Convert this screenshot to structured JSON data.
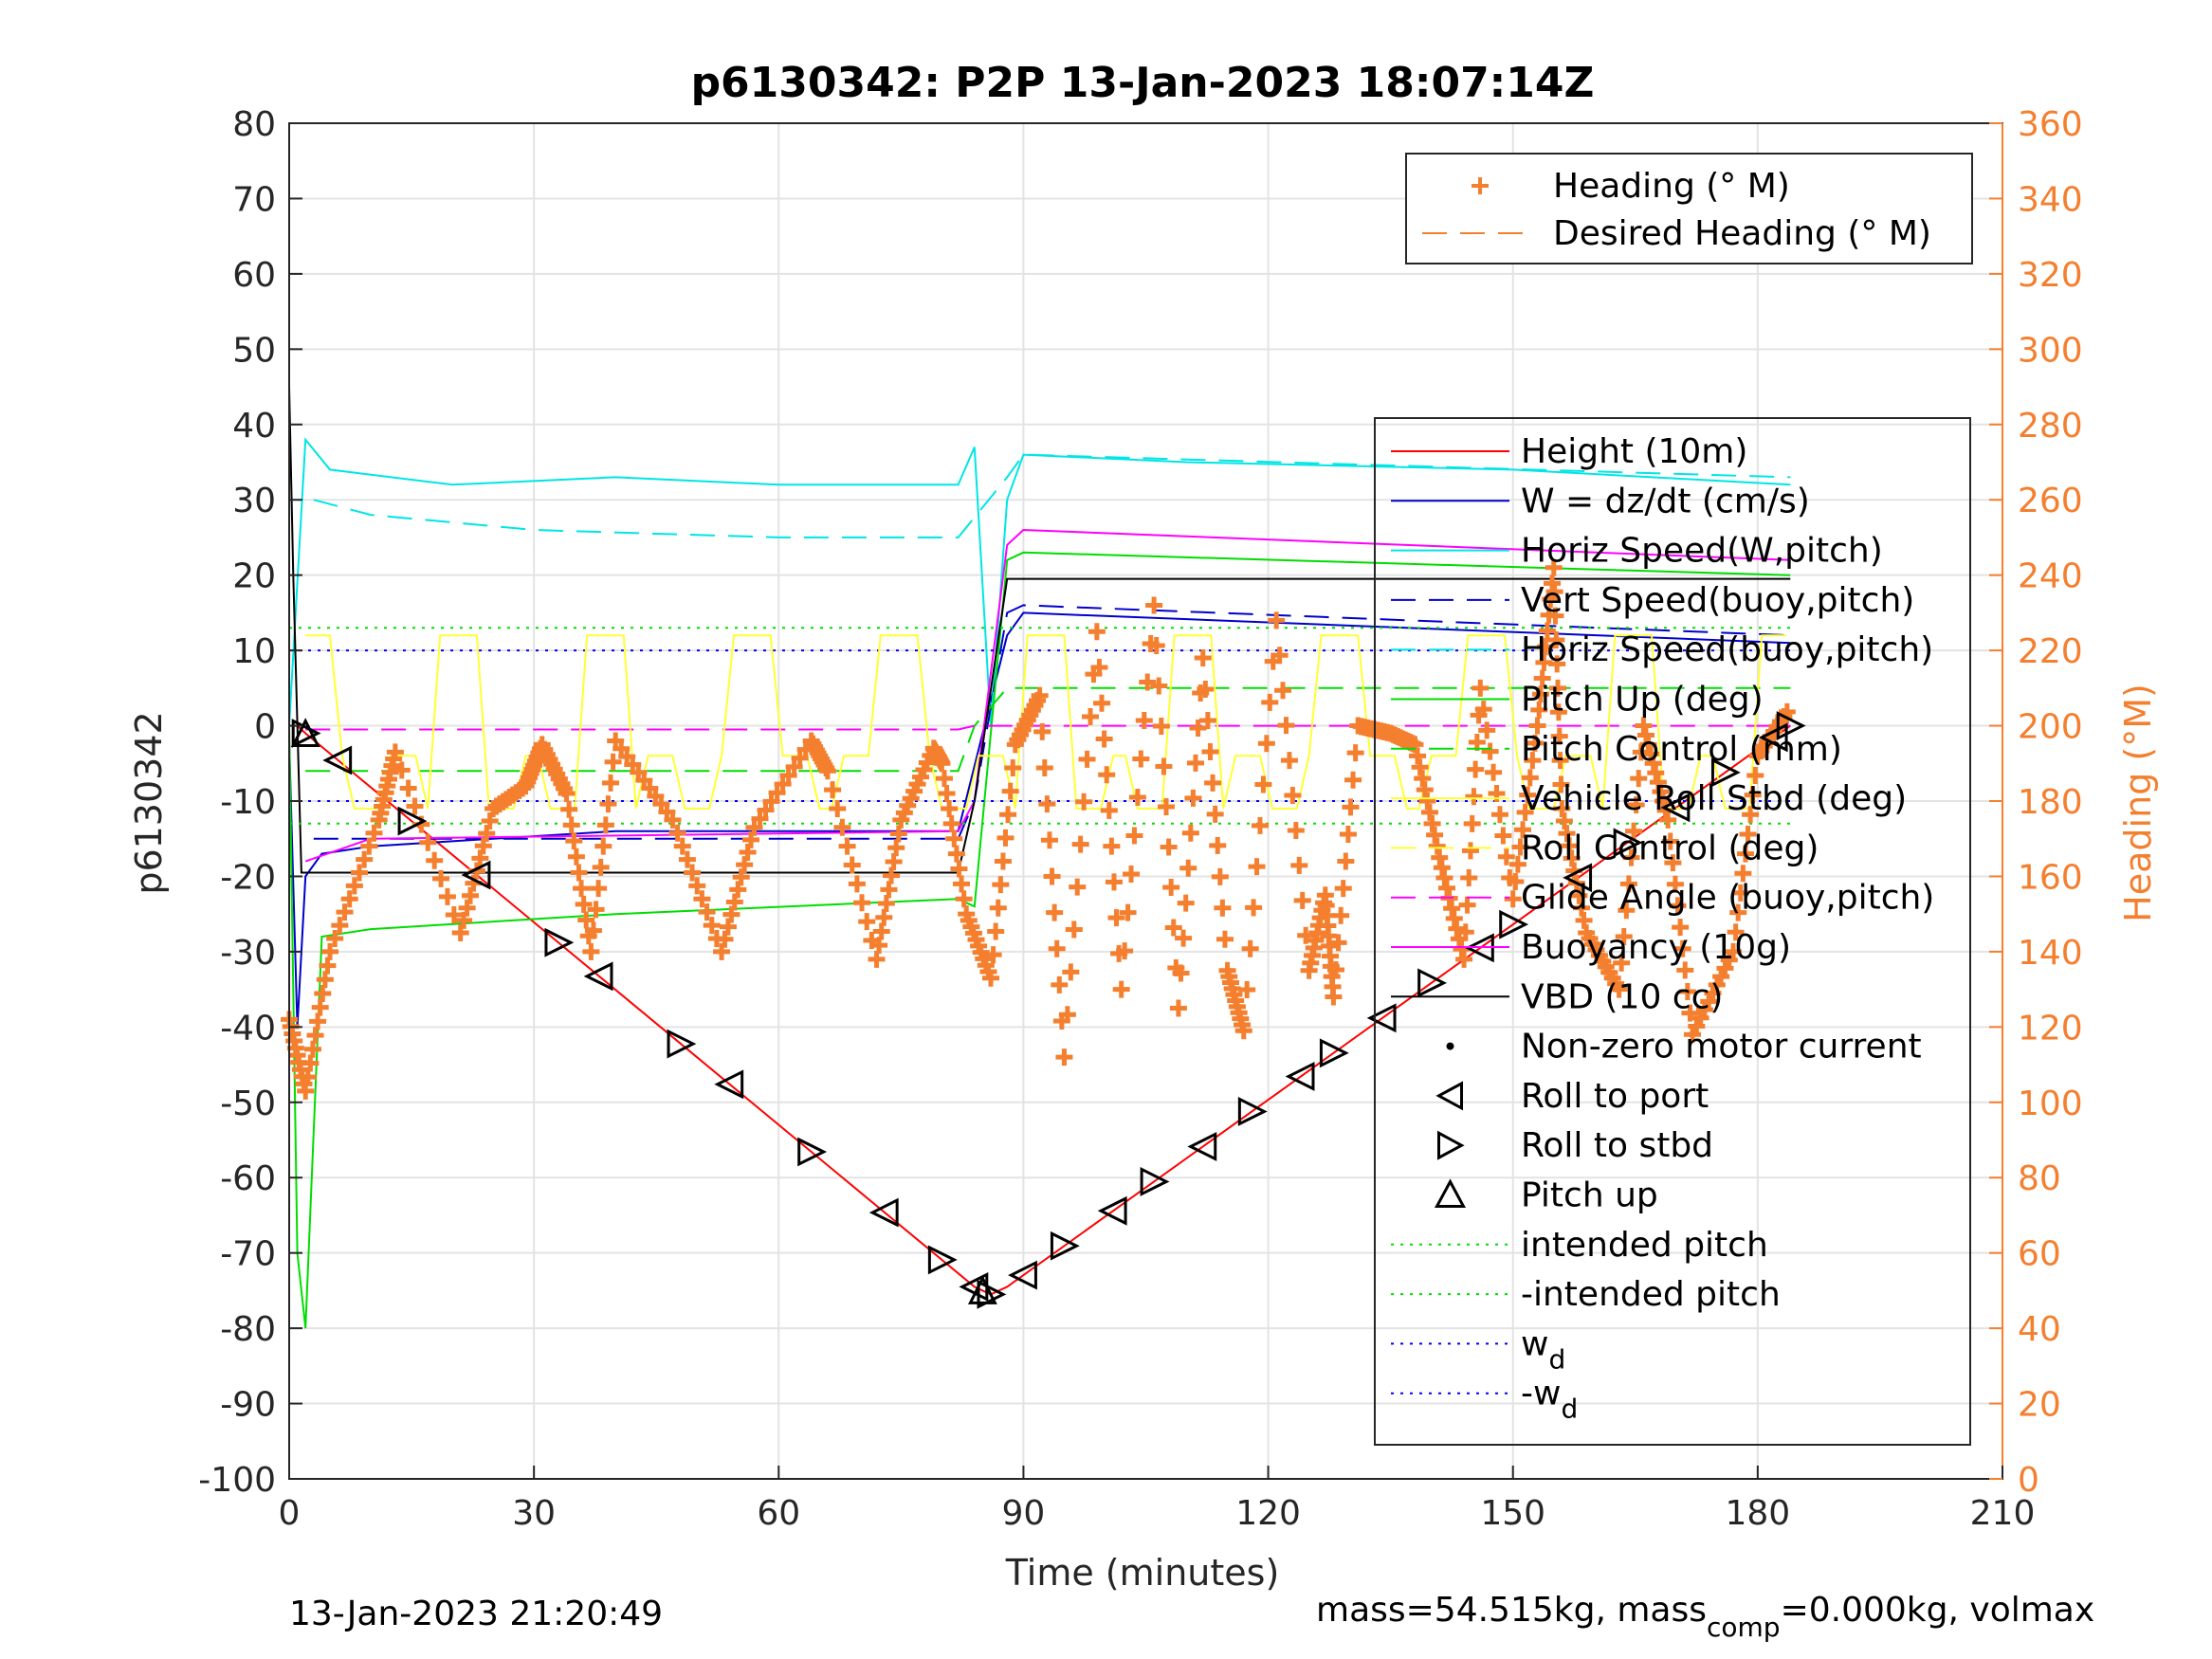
{
  "chart_data": {
    "type": "line",
    "title": "p6130342: P2P 13-Jan-2023 18:07:14Z",
    "xlabel": "Time (minutes)",
    "ylabel": "p6130342",
    "ylabel_right": "Heading (°M)",
    "xlim": [
      0,
      210
    ],
    "ylim": [
      -100,
      80
    ],
    "ylim_right": [
      0,
      360
    ],
    "x_ticks": [
      0,
      30,
      60,
      90,
      120,
      150,
      180,
      210
    ],
    "y_ticks": [
      -100,
      -90,
      -80,
      -70,
      -60,
      -50,
      -40,
      -30,
      -20,
      -10,
      0,
      10,
      20,
      30,
      40,
      50,
      60,
      70,
      80
    ],
    "y_ticks_right": [
      0,
      20,
      40,
      60,
      80,
      100,
      120,
      140,
      160,
      180,
      200,
      220,
      240,
      260,
      280,
      300,
      320,
      340,
      360
    ],
    "grid": true,
    "colors": {
      "height": "#ff0000",
      "w": "#0000cc",
      "horiz_speed": "#00e5e5",
      "pitch_up": "#00dd00",
      "pitch_control": "#00dd00",
      "roll_control": "#ffff33",
      "glide": "#ff00ff",
      "buoyancy": "#ff00ff",
      "vbd": "#000000",
      "heading": "#f47f2f",
      "wd": "#0000ff"
    },
    "legend_heading": [
      {
        "label": "Heading (° M)",
        "style": "plus"
      },
      {
        "label": "Desired Heading (° M)",
        "style": "dash"
      }
    ],
    "legend_heading_position": "top-right",
    "legend_main_position": "right",
    "legend_main": [
      {
        "label": "Height (10m)",
        "style": "solid",
        "color": "#ff0000"
      },
      {
        "label": "W = dz/dt (cm/s)",
        "style": "solid",
        "color": "#0000cc"
      },
      {
        "label": "Horiz Speed(W,pitch)",
        "style": "solid",
        "color": "#00e5e5"
      },
      {
        "label": "Vert Speed(buoy,pitch)",
        "style": "dash",
        "color": "#0000cc"
      },
      {
        "label": "Horiz Speed(buoy,pitch)",
        "style": "dash",
        "color": "#00e5e5"
      },
      {
        "label": "Pitch Up (deg)",
        "style": "solid",
        "color": "#00dd00"
      },
      {
        "label": "Pitch Control (mm)",
        "style": "dash",
        "color": "#00dd00"
      },
      {
        "label": "Vehicle Roll Stbd (deg)",
        "style": "solid",
        "color": "#ffff33"
      },
      {
        "label": "Roll Control (deg)",
        "style": "dash",
        "color": "#ffff33"
      },
      {
        "label": "Glide Angle (buoy,pitch)",
        "style": "dash",
        "color": "#ff00ff"
      },
      {
        "label": "Buoyancy (10g)",
        "style": "solid",
        "color": "#ff00ff"
      },
      {
        "label": "VBD (10 cc)",
        "style": "solid",
        "color": "#000000"
      },
      {
        "label": "Non-zero motor current",
        "style": "dot",
        "color": "#000000"
      },
      {
        "label": "Roll to port",
        "style": "tri-left",
        "color": "#000000"
      },
      {
        "label": "Roll to stbd",
        "style": "tri-right",
        "color": "#000000"
      },
      {
        "label": "Pitch up",
        "style": "tri-up",
        "color": "#000000"
      },
      {
        "label": "intended pitch",
        "style": "dotted",
        "color": "#00dd00"
      },
      {
        "label": "-intended pitch",
        "style": "dotted",
        "color": "#00dd00"
      },
      {
        "label": "w",
        "sub": "d",
        "style": "dotted",
        "color": "#0000ff"
      },
      {
        "label": "-w",
        "sub": "d",
        "style": "dotted",
        "color": "#0000ff"
      }
    ],
    "series": [
      {
        "key": "height",
        "x": [
          0,
          1,
          2,
          84,
          86,
          88,
          184
        ],
        "y": [
          0,
          0,
          -1,
          -74.5,
          -75.5,
          -74.5,
          0
        ]
      },
      {
        "key": "w",
        "x": [
          0,
          1,
          2,
          4,
          10,
          40,
          82,
          88,
          90,
          184
        ],
        "y": [
          -2,
          -40,
          -20,
          -17,
          -16,
          -14,
          -14,
          12,
          15,
          11
        ]
      },
      {
        "key": "horiz_speed",
        "x": [
          0,
          2,
          5,
          20,
          40,
          60,
          82,
          84,
          86,
          88,
          90,
          110,
          150,
          184
        ],
        "y": [
          0,
          38,
          34,
          32,
          33,
          32,
          32,
          37,
          0,
          30,
          36,
          35,
          34,
          32
        ]
      },
      {
        "key": "vert_speed_buoy",
        "x": [
          3,
          82,
          84,
          88,
          90,
          184
        ],
        "y": [
          -15,
          -15,
          -10,
          15,
          16,
          12
        ]
      },
      {
        "key": "horiz_speed_buoy",
        "x": [
          3,
          10,
          30,
          60,
          82,
          88,
          90,
          184
        ],
        "y": [
          30,
          28,
          26,
          25,
          25,
          33,
          36,
          33
        ]
      },
      {
        "key": "pitch_up",
        "x": [
          0,
          1,
          2,
          4,
          10,
          40,
          82,
          84,
          88,
          90,
          184
        ],
        "y": [
          0,
          -70,
          -80,
          -28,
          -27,
          -25,
          -23,
          -24,
          22,
          23,
          20
        ]
      },
      {
        "key": "pitch_control",
        "x": [
          2,
          82,
          84,
          88,
          184
        ],
        "y": [
          -6,
          -6,
          0,
          5,
          5
        ]
      },
      {
        "key": "glide",
        "x": [
          2,
          82,
          84,
          88,
          184
        ],
        "y": [
          -0.5,
          -0.5,
          0,
          0,
          0
        ]
      },
      {
        "key": "buoyancy",
        "x": [
          2,
          10,
          82,
          84,
          88,
          90,
          184
        ],
        "y": [
          -18,
          -15,
          -14,
          -10,
          24,
          26,
          22
        ]
      },
      {
        "key": "vbd",
        "x": [
          0,
          0.5,
          1.5,
          82,
          84,
          88,
          184
        ],
        "y": [
          45,
          20,
          -19.5,
          -19.5,
          -10,
          19.5,
          19.5
        ]
      },
      {
        "key": "intended_pitch",
        "x": [
          0,
          184
        ],
        "y": [
          13,
          13
        ]
      },
      {
        "key": "neg_intended_pitch",
        "x": [
          0,
          184
        ],
        "y": [
          -13,
          -13
        ]
      },
      {
        "key": "wd",
        "x": [
          0,
          184
        ],
        "y": [
          10,
          10
        ]
      },
      {
        "key": "neg_wd",
        "x": [
          0,
          184
        ],
        "y": [
          -10,
          -10
        ]
      }
    ],
    "heading_path": {
      "x": [
        0,
        2,
        5,
        11,
        13,
        21,
        25,
        29,
        31,
        34,
        37,
        40,
        47,
        53,
        57,
        64,
        66,
        72,
        75,
        79,
        80,
        83,
        86,
        89,
        92,
        95,
        99,
        102,
        106,
        109,
        112,
        115,
        117,
        121,
        125,
        127,
        128,
        131,
        135,
        138,
        141,
        144,
        146,
        150,
        153,
        155,
        156,
        159,
        163,
        166,
        169,
        172,
        177,
        180,
        184
      ],
      "y": [
        122,
        103,
        140,
        175,
        193,
        145,
        178,
        184,
        195,
        182,
        140,
        196,
        175,
        140,
        173,
        196,
        188,
        138,
        175,
        194,
        190,
        150,
        133,
        195,
        208,
        112,
        225,
        130,
        232,
        125,
        218,
        135,
        119,
        228,
        135,
        155,
        128,
        200,
        198,
        195,
        165,
        138,
        210,
        154,
        200,
        242,
        178,
        145,
        130,
        200,
        175,
        118,
        140,
        192,
        205
      ]
    },
    "roll_events": {
      "x": [
        2,
        6,
        15,
        23,
        33,
        38,
        48,
        54,
        64,
        73,
        80,
        84,
        86,
        90,
        95,
        101,
        106,
        112,
        118,
        124,
        128,
        134,
        140,
        146,
        150,
        158,
        164,
        170,
        176,
        182,
        184
      ]
    },
    "pitch_up_events": {
      "x": [
        2,
        85
      ]
    }
  },
  "footer": {
    "left": "13-Jan-2023 21:20:49",
    "right_1": "mass=54.515kg, mass",
    "right_sub": "comp",
    "right_2": "=0.000kg, volmax"
  }
}
